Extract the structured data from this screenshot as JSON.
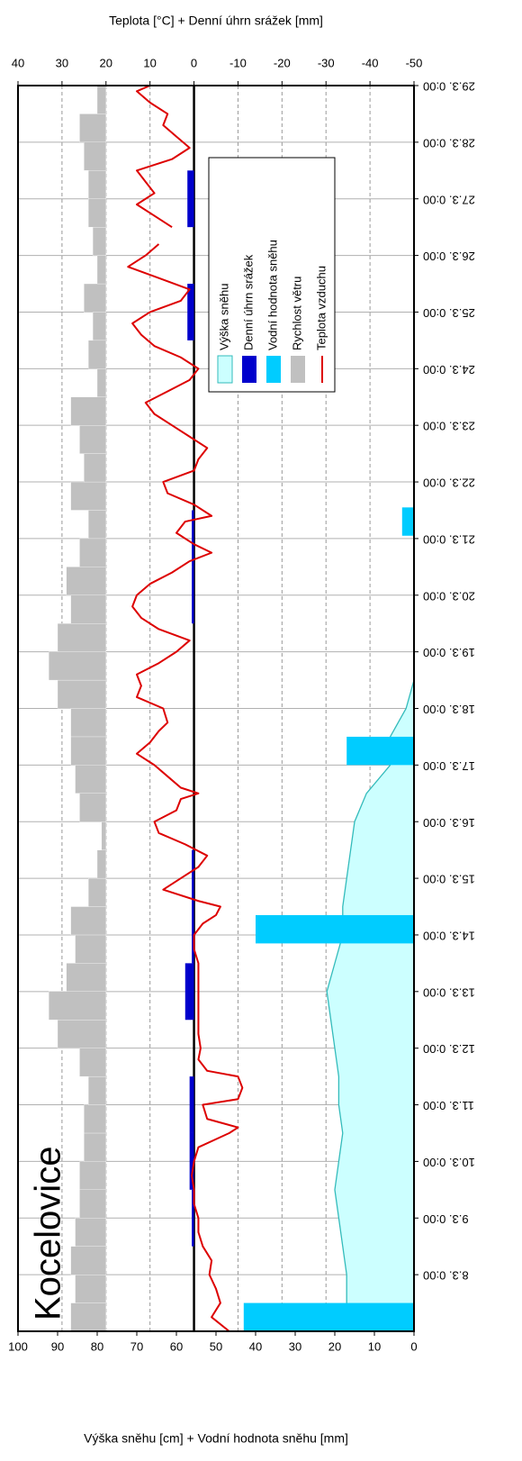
{
  "chart_data": {
    "type": "combo",
    "title": "Kocelovice",
    "ylabel": "Výška sněhu [cm] + Vodní hodnota sněhu [mm]",
    "y2label": "Teplota [°C] + Denní úhrn srážek [mm]",
    "xlim": [
      7,
      29
    ],
    "xticks": [
      {
        "value": 8,
        "label": "8.3. 0:00"
      },
      {
        "value": 9,
        "label": "9.3. 0:00"
      },
      {
        "value": 10,
        "label": "10.3. 0:00"
      },
      {
        "value": 11,
        "label": "11.3. 0:00"
      },
      {
        "value": 12,
        "label": "12.3. 0:00"
      },
      {
        "value": 13,
        "label": "13.3. 0:00"
      },
      {
        "value": 14,
        "label": "14.3. 0:00"
      },
      {
        "value": 15,
        "label": "15.3. 0:00"
      },
      {
        "value": 16,
        "label": "16.3. 0:00"
      },
      {
        "value": 17,
        "label": "17.3. 0:00"
      },
      {
        "value": 18,
        "label": "18.3. 0:00"
      },
      {
        "value": 19,
        "label": "19.3. 0:00"
      },
      {
        "value": 20,
        "label": "20.3. 0:00"
      },
      {
        "value": 21,
        "label": "21.3. 0:00"
      },
      {
        "value": 22,
        "label": "22.3. 0:00"
      },
      {
        "value": 23,
        "label": "23.3. 0:00"
      },
      {
        "value": 24,
        "label": "24.3. 0:00"
      },
      {
        "value": 25,
        "label": "25.3. 0:00"
      },
      {
        "value": 26,
        "label": "26.3. 0:00"
      },
      {
        "value": 27,
        "label": "27.3. 0:00"
      },
      {
        "value": 28,
        "label": "28.3. 0:00"
      },
      {
        "value": 29,
        "label": "29.3. 0:00"
      }
    ],
    "ylim": [
      0,
      100
    ],
    "yticks": [
      0,
      10,
      20,
      30,
      40,
      50,
      60,
      70,
      80,
      90,
      100
    ],
    "y2lim": [
      -50,
      40
    ],
    "y2ticks": [
      -50,
      -40,
      -30,
      -20,
      -10,
      0,
      10,
      20,
      30,
      40
    ],
    "grid": true,
    "legend": "center-right",
    "series": [
      {
        "name": "Výška sněhu",
        "kind": "area",
        "axis": "y",
        "color": "#ccffff",
        "edge": "#33bbbb",
        "x": [
          7,
          7.5,
          8,
          8.5,
          9,
          9.5,
          10,
          10.5,
          11,
          11.5,
          12,
          12.5,
          13,
          13.5,
          14,
          14.5,
          15,
          15.5,
          16,
          16.5,
          17,
          17.5,
          18,
          18.5
        ],
        "values": [
          17,
          17,
          17,
          18,
          19,
          20,
          19,
          18,
          19,
          19,
          20,
          21,
          22,
          20,
          18,
          18,
          17,
          16,
          15,
          12,
          6,
          6,
          2,
          0
        ]
      },
      {
        "name": "Denní úhrn srážek",
        "kind": "bar",
        "axis": "y2",
        "color": "#0000cc",
        "x": [
          7,
          8,
          9,
          10,
          11,
          12,
          13,
          14,
          15,
          16,
          17,
          18,
          19,
          20,
          21,
          22,
          23,
          24,
          25,
          26,
          27,
          28
        ],
        "values": [
          0,
          0,
          0.5,
          1,
          1,
          0,
          2,
          0.5,
          0.5,
          0,
          0,
          0,
          0,
          0.5,
          0.5,
          0,
          0,
          0,
          1.5,
          0,
          1.5,
          0
        ]
      },
      {
        "name": "Vodní hodnota sněhu",
        "kind": "bar",
        "axis": "y",
        "color": "#00ccff",
        "x": [
          7.25,
          14.1,
          17.25,
          21.3
        ],
        "values": [
          43,
          40,
          17,
          3
        ]
      },
      {
        "name": "Rychlost větru",
        "kind": "bar",
        "axis": "y2",
        "color": "#c0c0c0",
        "baseline": 20,
        "x": [
          7,
          7.5,
          8,
          8.5,
          9,
          9.5,
          10,
          10.5,
          11,
          11.5,
          12,
          12.5,
          13,
          13.5,
          14,
          14.5,
          15,
          15.5,
          16,
          16.5,
          17,
          17.5,
          18,
          18.5,
          19,
          19.5,
          20,
          20.5,
          21,
          21.5,
          22,
          22.5,
          23,
          23.5,
          24,
          24.5,
          25,
          25.5,
          26,
          26.5,
          27,
          27.5,
          28,
          28.5
        ],
        "values": [
          28,
          27,
          28,
          27,
          26,
          26,
          25,
          25,
          24,
          26,
          31,
          33,
          29,
          27,
          28,
          24,
          22,
          21,
          26,
          27,
          28,
          28,
          31,
          33,
          31,
          28,
          29,
          26,
          24,
          28,
          25,
          26,
          28,
          22,
          24,
          23,
          25,
          22,
          23,
          24,
          24,
          25,
          26,
          22
        ]
      },
      {
        "name": "Teplota vzduchu",
        "kind": "line",
        "axis": "y2",
        "color": "#dd0000",
        "x": [
          7,
          7.25,
          7.5,
          7.75,
          8,
          8.25,
          8.5,
          8.75,
          9,
          9.25,
          9.5,
          9.75,
          10,
          10.25,
          10.5,
          10.6,
          10.75,
          11,
          11.1,
          11.3,
          11.5,
          11.6,
          11.8,
          12,
          12.25,
          12.5,
          12.75,
          13,
          13.25,
          13.5,
          13.75,
          14,
          14.2,
          14.35,
          14.5,
          14.6,
          14.8,
          15,
          15.2,
          15.4,
          15.6,
          15.8,
          16,
          16.2,
          16.4,
          16.5,
          16.6,
          16.8,
          17,
          17.2,
          17.4,
          17.6,
          17.75,
          18,
          18.2,
          18.4,
          18.6,
          18.8,
          19,
          19.2,
          19.4,
          19.6,
          19.8,
          20,
          20.2,
          20.4,
          20.6,
          20.75,
          20.9,
          21.1,
          21.3,
          21.4,
          21.6,
          21.8,
          22,
          22.2,
          22.4,
          22.6,
          22.8,
          23,
          23.2,
          23.4,
          23.6,
          23.8,
          24,
          24.2,
          24.4,
          24.6,
          24.8,
          25,
          25.2,
          25.4,
          25.6,
          25.8,
          26,
          26.2,
          26.35,
          26.5,
          26.7,
          26.9,
          27.1,
          27.3,
          27.5,
          27.7,
          27.9,
          28.1,
          28.3,
          28.5,
          28.7,
          28.9,
          29
        ],
        "values": [
          -8,
          -4,
          -6,
          -5,
          -3.5,
          -4,
          -2,
          -1,
          -1,
          0,
          0,
          0.5,
          0,
          -1,
          -8,
          -10,
          -3,
          -2,
          -10,
          -11,
          -10,
          -3,
          -1,
          -1.5,
          -1,
          -1,
          -1,
          -1,
          -1,
          -1,
          0,
          0,
          -2,
          -5,
          -6,
          -1,
          7,
          3,
          -1,
          -3,
          2,
          8,
          9,
          4,
          3,
          -1,
          3,
          6,
          9,
          13,
          10,
          8,
          6,
          7,
          13,
          12,
          13,
          8,
          4,
          1,
          8,
          12,
          14,
          13,
          10,
          5,
          1,
          -4,
          0,
          4,
          2,
          -4,
          0,
          6,
          7,
          0,
          -1,
          -3,
          1,
          5,
          9,
          11,
          6,
          1,
          -1,
          3,
          9,
          12,
          14,
          10,
          3,
          1,
          8,
          15,
          11,
          8,
          null,
          5,
          9,
          13,
          9,
          11,
          13,
          5,
          1,
          4,
          7,
          6,
          10,
          13,
          10
        ]
      }
    ]
  }
}
